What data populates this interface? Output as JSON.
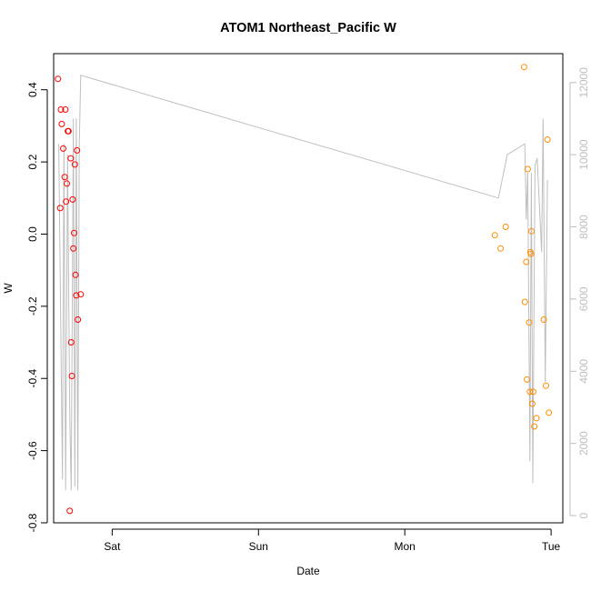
{
  "chart_data": {
    "type": "scatter",
    "title": "ATOM1 Northeast_Pacific W",
    "xlabel": "Date",
    "ylabel": "W",
    "right_axis_label": "",
    "x_ticks": [
      "Sat",
      "Sun",
      "Mon",
      "Tue"
    ],
    "y_ticks": [
      "-0.8",
      "-0.6",
      "-0.4",
      "-0.2",
      "0.0",
      "0.2",
      "0.4"
    ],
    "y_tick_values": [
      -0.8,
      -0.6,
      -0.4,
      -0.2,
      0.0,
      0.2,
      0.4
    ],
    "y2_ticks": [
      "0",
      "2000",
      "4000",
      "6000",
      "8000",
      "10000",
      "12000"
    ],
    "y2_tick_values": [
      0,
      2000,
      4000,
      6000,
      8000,
      10000,
      12000
    ],
    "xlim": [
      -0.4,
      3.08
    ],
    "ylim": [
      -0.8,
      0.5
    ],
    "y2lim": [
      -200,
      12800
    ],
    "grid": false,
    "colors": {
      "series1": "#ff0000",
      "series2": "#ff8c00",
      "depth_line": "#bebebe",
      "axis": "#000000",
      "right_axis": "#bebebe"
    },
    "series": [
      {
        "values": [
          {
            "x": -0.37,
            "y": 0.43
          },
          {
            "x": -0.355,
            "y": 0.072
          },
          {
            "x": -0.35,
            "y": 0.345
          },
          {
            "x": -0.345,
            "y": 0.305
          },
          {
            "x": -0.335,
            "y": 0.237
          },
          {
            "x": -0.325,
            "y": 0.158
          },
          {
            "x": -0.32,
            "y": 0.345
          },
          {
            "x": -0.315,
            "y": 0.09
          },
          {
            "x": -0.31,
            "y": 0.14
          },
          {
            "x": -0.303,
            "y": 0.285
          },
          {
            "x": -0.298,
            "y": 0.285
          },
          {
            "x": -0.29,
            "y": -0.767
          },
          {
            "x": -0.283,
            "y": 0.21
          },
          {
            "x": -0.28,
            "y": -0.3
          },
          {
            "x": -0.275,
            "y": -0.393
          },
          {
            "x": -0.27,
            "y": 0.096
          },
          {
            "x": -0.265,
            "y": -0.04
          },
          {
            "x": -0.26,
            "y": 0.003
          },
          {
            "x": -0.255,
            "y": 0.193
          },
          {
            "x": -0.25,
            "y": -0.113
          },
          {
            "x": -0.245,
            "y": -0.17
          },
          {
            "x": -0.24,
            "y": 0.232
          },
          {
            "x": -0.235,
            "y": -0.237
          },
          {
            "x": -0.215,
            "y": -0.167
          }
        ]
      },
      {
        "values": [
          {
            "x": 2.615,
            "y": -0.003
          },
          {
            "x": 2.655,
            "y": -0.04
          },
          {
            "x": 2.69,
            "y": 0.02
          },
          {
            "x": 2.815,
            "y": 0.463
          },
          {
            "x": 2.82,
            "y": -0.188
          },
          {
            "x": 2.83,
            "y": -0.077
          },
          {
            "x": 2.835,
            "y": -0.403
          },
          {
            "x": 2.84,
            "y": 0.18
          },
          {
            "x": 2.85,
            "y": -0.245
          },
          {
            "x": 2.855,
            "y": -0.437
          },
          {
            "x": 2.858,
            "y": -0.05
          },
          {
            "x": 2.862,
            "y": -0.055
          },
          {
            "x": 2.866,
            "y": 0.008
          },
          {
            "x": 2.872,
            "y": -0.47
          },
          {
            "x": 2.878,
            "y": -0.437
          },
          {
            "x": 2.885,
            "y": -0.533
          },
          {
            "x": 2.9,
            "y": -0.51
          },
          {
            "x": 2.95,
            "y": -0.237
          },
          {
            "x": 2.965,
            "y": -0.42
          },
          {
            "x": 2.975,
            "y": 0.262
          },
          {
            "x": 2.985,
            "y": -0.495
          }
        ]
      }
    ],
    "depth_line": [
      {
        "x": -0.365,
        "y2": 10300
      },
      {
        "x": -0.34,
        "y2": 1000
      },
      {
        "x": -0.33,
        "y2": 10300
      },
      {
        "x": -0.318,
        "y2": 700
      },
      {
        "x": -0.305,
        "y2": 10000
      },
      {
        "x": -0.29,
        "y2": 2800
      },
      {
        "x": -0.28,
        "y2": 700
      },
      {
        "x": -0.265,
        "y2": 11000
      },
      {
        "x": -0.255,
        "y2": 800
      },
      {
        "x": -0.245,
        "y2": 11000
      },
      {
        "x": -0.235,
        "y2": 700
      },
      {
        "x": -0.225,
        "y2": 10300
      },
      {
        "x": -0.215,
        "y2": 12200
      },
      {
        "x": 2.64,
        "y2": 8800
      },
      {
        "x": 2.7,
        "y2": 10000
      },
      {
        "x": 2.82,
        "y2": 10300
      },
      {
        "x": 2.83,
        "y2": 8200
      },
      {
        "x": 2.84,
        "y2": 9500
      },
      {
        "x": 2.855,
        "y2": 1500
      },
      {
        "x": 2.865,
        "y2": 9500
      },
      {
        "x": 2.875,
        "y2": 900
      },
      {
        "x": 2.89,
        "y2": 9700
      },
      {
        "x": 2.905,
        "y2": 9900
      },
      {
        "x": 2.935,
        "y2": 7300
      },
      {
        "x": 2.945,
        "y2": 11000
      },
      {
        "x": 2.96,
        "y2": 3700
      },
      {
        "x": 2.975,
        "y2": 9300
      }
    ]
  }
}
